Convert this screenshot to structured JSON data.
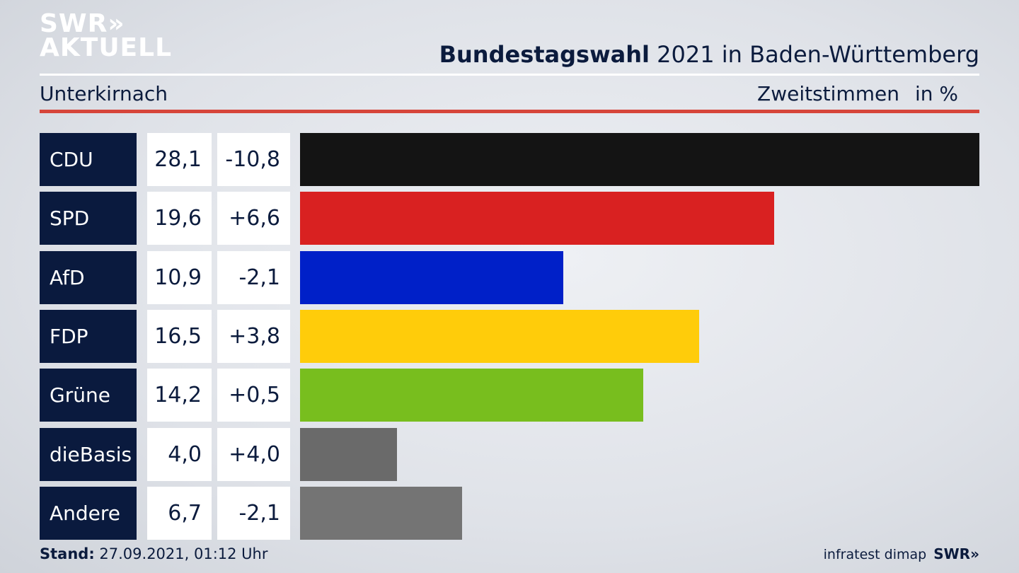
{
  "logo": {
    "line1": "SWR»",
    "line2": "AKTUELL"
  },
  "header": {
    "title_bold": "Bundestagswahl",
    "title_rest": " 2021 in Baden-Württemberg",
    "location": "Unterkirnach",
    "measure": "Zweitstimmen",
    "unit": "in %"
  },
  "footer": {
    "stand_label": "Stand:",
    "stand_value": " 27.09.2021, 01:12 Uhr",
    "source": "infratest dimap",
    "brand": "SWR»"
  },
  "chart_data": {
    "type": "bar",
    "orientation": "horizontal",
    "title": "Bundestagswahl 2021 in Baden-Württemberg",
    "subtitle": "Unterkirnach",
    "categories": [
      "CDU",
      "SPD",
      "AfD",
      "FDP",
      "Grüne",
      "dieBasis",
      "Andere"
    ],
    "values": [
      28.1,
      19.6,
      10.9,
      16.5,
      14.2,
      4.0,
      6.7
    ],
    "values_label": [
      "28,1",
      "19,6",
      "10,9",
      "16,5",
      "14,2",
      "4,0",
      "6,7"
    ],
    "changes": [
      -10.8,
      6.6,
      -2.1,
      3.8,
      0.5,
      4.0,
      -2.1
    ],
    "changes_label": [
      "-10,8",
      "+6,6",
      "-2,1",
      "+3,8",
      "+0,5",
      "+4,0",
      "-2,1"
    ],
    "colors": [
      "#141414",
      "#d92121",
      "#0020c8",
      "#ffcc0a",
      "#78be1e",
      "#6a6a6a",
      "#747474"
    ],
    "xlim": [
      0,
      28.1
    ]
  }
}
